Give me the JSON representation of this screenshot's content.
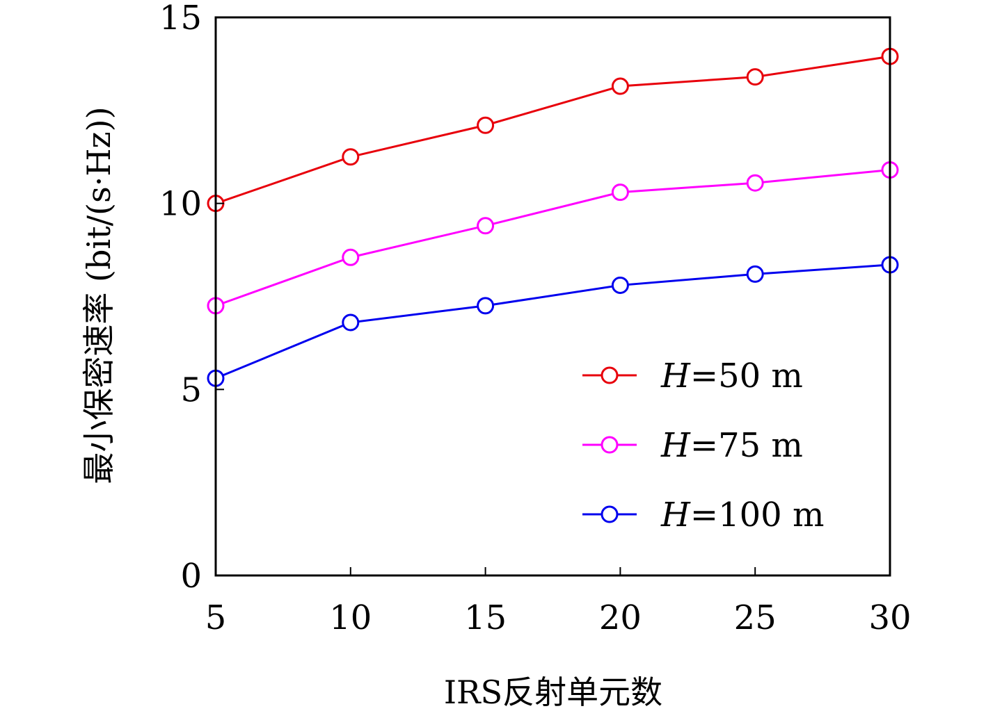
{
  "chart_data": {
    "type": "line",
    "title": "",
    "xlabel": "IRS反射单元数",
    "ylabel": "最小保密速率 (bit/(s·Hz))",
    "x": [
      5,
      10,
      15,
      20,
      25,
      30
    ],
    "xlim": [
      5,
      30
    ],
    "ylim": [
      0,
      15
    ],
    "xticks": [
      "5",
      "10",
      "15",
      "20",
      "25",
      "30"
    ],
    "yticks": [
      "0",
      "5",
      "10",
      "15"
    ],
    "grid": false,
    "legend_position": "bottom-right",
    "series": [
      {
        "name": "H=50 m",
        "legend_var": "H",
        "legend_rest": "=50 m",
        "color": "#e8000b",
        "marker": "circle",
        "values": [
          10.0,
          11.25,
          12.1,
          13.15,
          13.4,
          13.95
        ]
      },
      {
        "name": "H=75 m",
        "legend_var": "H",
        "legend_rest": "=75 m",
        "color": "#ff00ff",
        "marker": "circle",
        "values": [
          7.25,
          8.55,
          9.4,
          10.3,
          10.55,
          10.9
        ]
      },
      {
        "name": "H=100 m",
        "legend_var": "H",
        "legend_rest": "=100 m",
        "color": "#0000ee",
        "marker": "circle",
        "values": [
          5.3,
          6.8,
          7.25,
          7.8,
          8.1,
          8.35
        ]
      }
    ]
  }
}
